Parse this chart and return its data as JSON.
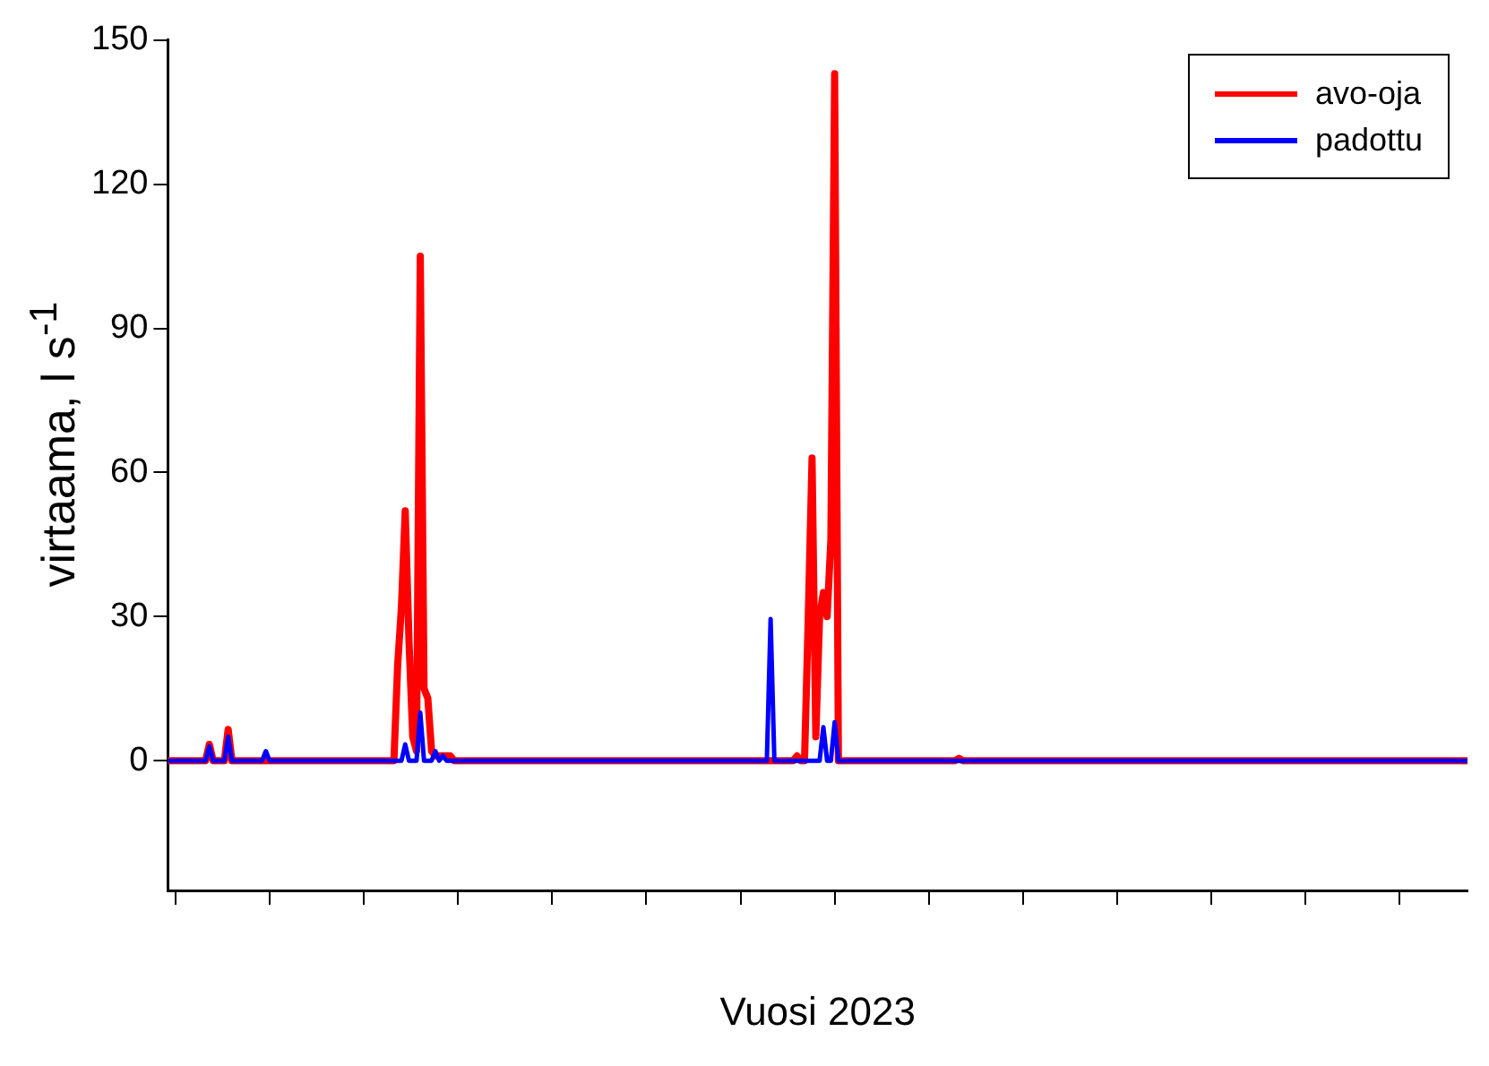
{
  "chart_data": {
    "type": "line",
    "xlabel": "Vuosi 2023",
    "ylabel": "virtaama, l s$^{-1}$",
    "categories": [
      null,
      null,
      null,
      null,
      null,
      null,
      null,
      null,
      null,
      null,
      null,
      null,
      null,
      null,
      null,
      null,
      null,
      null,
      null,
      null,
      null,
      null,
      null,
      null,
      null,
      null,
      null,
      null,
      null,
      null,
      null,
      null,
      null,
      null,
      null,
      null,
      null,
      null,
      null,
      null,
      null,
      null,
      null,
      null,
      null,
      null,
      null,
      null,
      null,
      null,
      null,
      null,
      null,
      null,
      null,
      null,
      null,
      null,
      null,
      null,
      null,
      null,
      null,
      null,
      null,
      null,
      null,
      null,
      null,
      null,
      null,
      null,
      null,
      null,
      null,
      null,
      null,
      null,
      null,
      null,
      null,
      null,
      null,
      null,
      null,
      null,
      null,
      null,
      null,
      null,
      null,
      null,
      null,
      null,
      null,
      null,
      null,
      null,
      null,
      null,
      null,
      null,
      null,
      null,
      null,
      null,
      null,
      null,
      null,
      null,
      null,
      null,
      null,
      null,
      null,
      null,
      null,
      null,
      null,
      null,
      null,
      null,
      null,
      null,
      null,
      null,
      null,
      null,
      null,
      null,
      null,
      null,
      null,
      null,
      null,
      null,
      null,
      null,
      null,
      null,
      null,
      null,
      null,
      null,
      null,
      null,
      null,
      null,
      null,
      null,
      null,
      null,
      null,
      null,
      null,
      null,
      null,
      null,
      null,
      null,
      null,
      null,
      null,
      null,
      null,
      null,
      null,
      null,
      null,
      null,
      null,
      null,
      null,
      null,
      null,
      null,
      null,
      null,
      null,
      null,
      null,
      null,
      null,
      null,
      null,
      null,
      null,
      null,
      null,
      null,
      null,
      null,
      null,
      null,
      null,
      null,
      null,
      null,
      null,
      null,
      null,
      null,
      null,
      null,
      null,
      null,
      null,
      null,
      null,
      null,
      null,
      null,
      null,
      null,
      null,
      null,
      null,
      null,
      null,
      null,
      null,
      null,
      null,
      null,
      null,
      null,
      null,
      null,
      null,
      null,
      null,
      null,
      null,
      null,
      null,
      null,
      null,
      null,
      null,
      null,
      null,
      null,
      null,
      null,
      null,
      null,
      null,
      null,
      null,
      null,
      null,
      null,
      null,
      null,
      null,
      null,
      null,
      null,
      null,
      null,
      null,
      null,
      null,
      null,
      null,
      null,
      null,
      null,
      null,
      null,
      null,
      null,
      null,
      null,
      null,
      null,
      null,
      null,
      null,
      null,
      null,
      null,
      null,
      null,
      null,
      null,
      null,
      null,
      null,
      null,
      null,
      null,
      null,
      null,
      null,
      null,
      null,
      null,
      null,
      null,
      null,
      null,
      null,
      null,
      null,
      null,
      null,
      null,
      null,
      null,
      null,
      null,
      null,
      null,
      null,
      null,
      null,
      null,
      null,
      null,
      null,
      null,
      null,
      null,
      null,
      null,
      null,
      null,
      null,
      null,
      null,
      null,
      null,
      null,
      null,
      null,
      null,
      null,
      null,
      null,
      null,
      null,
      null,
      null,
      null,
      null
    ],
    "series": [
      {
        "name": "avo-oja",
        "color": "#ff0000",
        "values": [
          0,
          0,
          0,
          0,
          0,
          0,
          0,
          0,
          0,
          0,
          0,
          3.4,
          0,
          0,
          0,
          0,
          6.5,
          0,
          0,
          0,
          0,
          0,
          0,
          0,
          0,
          0,
          0,
          0,
          0,
          0,
          0,
          0,
          0,
          0,
          0,
          0,
          0,
          0,
          0,
          0,
          0,
          0,
          0,
          0,
          0,
          0,
          0,
          0,
          0,
          0,
          0,
          0,
          0,
          0,
          0,
          0,
          0,
          0,
          0,
          0,
          0,
          20,
          32,
          52,
          25,
          5,
          2,
          105,
          15,
          13,
          2,
          1,
          1,
          1,
          1,
          1,
          0,
          0,
          0,
          0,
          0,
          0,
          0,
          0,
          0,
          0,
          0,
          0,
          0,
          0,
          0,
          0,
          0,
          0,
          0,
          0,
          0,
          0,
          0,
          0,
          0,
          0,
          0,
          0,
          0,
          0,
          0,
          0,
          0,
          0,
          0,
          0,
          0,
          0,
          0,
          0,
          0,
          0,
          0,
          0,
          0,
          0,
          0,
          0,
          0,
          0,
          0,
          0,
          0,
          0,
          0,
          0,
          0,
          0,
          0,
          0,
          0,
          0,
          0,
          0,
          0,
          0,
          0,
          0,
          0,
          0,
          0,
          0,
          0,
          0,
          0,
          0,
          0,
          0,
          0,
          0,
          0,
          0,
          0,
          0,
          0,
          0,
          0,
          0,
          0,
          0,
          0,
          1,
          0,
          0,
          30,
          63,
          5,
          30,
          35,
          30,
          46,
          143,
          0,
          0,
          0,
          0,
          0,
          0,
          0,
          0,
          0,
          0,
          0,
          0,
          0,
          0,
          0,
          0,
          0,
          0,
          0,
          0,
          0,
          0,
          0,
          0,
          0,
          0,
          0,
          0,
          0,
          0,
          0,
          0,
          0.5,
          0,
          0,
          0,
          0,
          0,
          0,
          0,
          0,
          0,
          0,
          0,
          0,
          0,
          0,
          0,
          0,
          0,
          0,
          0,
          0,
          0,
          0,
          0,
          0,
          0,
          0,
          0,
          0,
          0,
          0,
          0,
          0,
          0,
          0,
          0,
          0,
          0,
          0,
          0,
          0,
          0,
          0,
          0,
          0,
          0,
          0,
          0,
          0,
          0,
          0,
          0,
          0,
          0,
          0,
          0,
          0,
          0,
          0,
          0,
          0,
          0,
          0,
          0,
          0,
          0,
          0,
          0,
          0,
          0,
          0,
          0,
          0,
          0,
          0,
          0,
          0,
          0,
          0,
          0,
          0,
          0,
          0,
          0,
          0,
          0,
          0,
          0,
          0,
          0,
          0,
          0,
          0,
          0,
          0,
          0,
          0,
          0,
          0,
          0,
          0,
          0,
          0,
          0,
          0,
          0,
          0,
          0,
          0,
          0,
          0,
          0,
          0,
          0,
          0,
          0,
          0,
          0,
          0,
          0,
          0,
          0,
          0,
          0,
          0,
          0,
          0,
          0,
          0,
          0,
          0,
          0,
          0,
          0,
          0,
          0
        ]
      },
      {
        "name": "padottu",
        "color": "#0000ff",
        "values": [
          0,
          0,
          0,
          0,
          0,
          0,
          0,
          0,
          0,
          0,
          0,
          3,
          0,
          0,
          0,
          0,
          5,
          0,
          0,
          0,
          0,
          0,
          0,
          0,
          0,
          0,
          2,
          0,
          0,
          0,
          0,
          0,
          0,
          0,
          0,
          0,
          0,
          0,
          0,
          0,
          0,
          0,
          0,
          0,
          0,
          0,
          0,
          0,
          0,
          0,
          0,
          0,
          0,
          0,
          0,
          0,
          0,
          0,
          0,
          0,
          0,
          0,
          0,
          3.4,
          0,
          0,
          0,
          10,
          0,
          0,
          0,
          2,
          0,
          1,
          0,
          0,
          0,
          0,
          0,
          0,
          0,
          0,
          0,
          0,
          0,
          0,
          0,
          0,
          0,
          0,
          0,
          0,
          0,
          0,
          0,
          0,
          0,
          0,
          0,
          0,
          0,
          0,
          0,
          0,
          0,
          0,
          0,
          0,
          0,
          0,
          0,
          0,
          0,
          0,
          0,
          0,
          0,
          0,
          0,
          0,
          0,
          0,
          0,
          0,
          0,
          0,
          0,
          0,
          0,
          0,
          0,
          0,
          0,
          0,
          0,
          0,
          0,
          0,
          0,
          0,
          0,
          0,
          0,
          0,
          0,
          0,
          0,
          0,
          0,
          0,
          0,
          0,
          0,
          0,
          0,
          0,
          0,
          0,
          0,
          0,
          29.5,
          0,
          0,
          0,
          0,
          0,
          0,
          0,
          0,
          0,
          0,
          0,
          0,
          0,
          7,
          0,
          0,
          8,
          0,
          0,
          0,
          0,
          0,
          0,
          0,
          0,
          0,
          0,
          0,
          0,
          0,
          0,
          0,
          0,
          0,
          0,
          0,
          0,
          0,
          0,
          0,
          0,
          0,
          0,
          0,
          0,
          0,
          0,
          0,
          0,
          0,
          0,
          0,
          0,
          0,
          0,
          0,
          0,
          0,
          0,
          0,
          0,
          0,
          0,
          0,
          0,
          0,
          0,
          0,
          0,
          0,
          0,
          0,
          0,
          0,
          0,
          0,
          0,
          0,
          0,
          0,
          0,
          0,
          0,
          0,
          0,
          0,
          0,
          0,
          0,
          0,
          0,
          0,
          0,
          0,
          0,
          0,
          0,
          0,
          0,
          0,
          0,
          0,
          0,
          0,
          0,
          0,
          0,
          0,
          0,
          0,
          0,
          0,
          0,
          0,
          0,
          0,
          0,
          0,
          0,
          0,
          0,
          0,
          0,
          0,
          0,
          0,
          0,
          0,
          0,
          0,
          0,
          0,
          0,
          0,
          0,
          0,
          0,
          0,
          0,
          0,
          0,
          0,
          0,
          0,
          0,
          0,
          0,
          0,
          0,
          0,
          0,
          0,
          0,
          0,
          0,
          0,
          0,
          0,
          0,
          0,
          0,
          0,
          0,
          0,
          0,
          0,
          0,
          0,
          0,
          0,
          0,
          0,
          0,
          0,
          0,
          0,
          0,
          0,
          0,
          0,
          0,
          0,
          0,
          0,
          0
        ]
      }
    ],
    "ylim": [
      -27,
      150
    ],
    "yticks": [
      0,
      30,
      60,
      90,
      120,
      150
    ],
    "grid": false,
    "legend": "top right",
    "tick_labels": "y",
    "marker": "none",
    "line_style": "solid"
  }
}
